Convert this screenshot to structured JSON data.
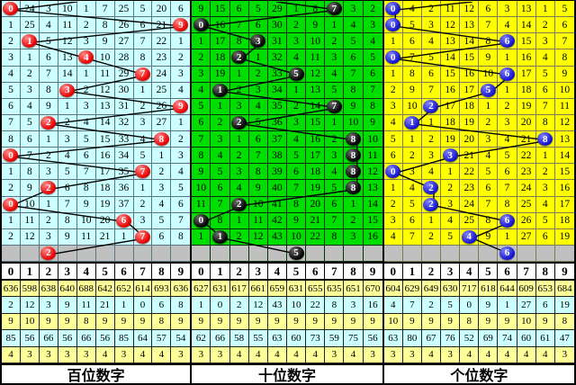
{
  "chart_data": {
    "type": "table",
    "column_headers": [
      "0",
      "1",
      "2",
      "3",
      "4",
      "5",
      "6",
      "7",
      "8",
      "9"
    ],
    "panels": [
      {
        "name": "hundreds",
        "label": "百位数字",
        "bg": "#ccffff",
        "grid_border": "#5a7682",
        "ball_color": "#e60000",
        "ball_light": "#ff8a8a",
        "entry_col": 3.9,
        "rows": [
          {
            "cells": [
              "0",
              "24",
              "3",
              "10",
              "1",
              "7",
              "25",
              "5",
              "20",
              "6"
            ],
            "ball_col": 0
          },
          {
            "cells": [
              "1",
              "25",
              "4",
              "11",
              "2",
              "8",
              "26",
              "6",
              "21",
              "9"
            ],
            "ball_col": 9
          },
          {
            "cells": [
              "2",
              "1",
              "5",
              "12",
              "3",
              "9",
              "27",
              "7",
              "22",
              "1"
            ],
            "ball_col": 1
          },
          {
            "cells": [
              "3",
              "1",
              "6",
              "13",
              "4",
              "10",
              "28",
              "8",
              "23",
              "2"
            ],
            "ball_col": 4
          },
          {
            "cells": [
              "4",
              "2",
              "7",
              "14",
              "1",
              "11",
              "29",
              "7",
              "24",
              "3"
            ],
            "ball_col": 7
          },
          {
            "cells": [
              "5",
              "3",
              "8",
              "3",
              "2",
              "12",
              "30",
              "1",
              "25",
              "4"
            ],
            "ball_col": 3
          },
          {
            "cells": [
              "6",
              "4",
              "9",
              "1",
              "3",
              "13",
              "31",
              "2",
              "26",
              "9"
            ],
            "ball_col": 9
          },
          {
            "cells": [
              "7",
              "5",
              "2",
              "2",
              "4",
              "14",
              "32",
              "3",
              "27",
              "1"
            ],
            "ball_col": 2
          },
          {
            "cells": [
              "8",
              "6",
              "1",
              "3",
              "5",
              "15",
              "33",
              "4",
              "8",
              "2"
            ],
            "ball_col": 8
          },
          {
            "cells": [
              "0",
              "7",
              "2",
              "4",
              "6",
              "16",
              "34",
              "5",
              "1",
              "3"
            ],
            "ball_col": 0
          },
          {
            "cells": [
              "1",
              "8",
              "3",
              "5",
              "7",
              "17",
              "35",
              "7",
              "2",
              "4"
            ],
            "ball_col": 7
          },
          {
            "cells": [
              "2",
              "9",
              "2",
              "6",
              "8",
              "18",
              "36",
              "1",
              "3",
              "5"
            ],
            "ball_col": 2
          },
          {
            "cells": [
              "0",
              "10",
              "1",
              "7",
              "9",
              "19",
              "37",
              "2",
              "4",
              "6"
            ],
            "ball_col": 0
          },
          {
            "cells": [
              "1",
              "11",
              "2",
              "8",
              "10",
              "20",
              "6",
              "3",
              "5",
              "7"
            ],
            "ball_col": 6
          },
          {
            "cells": [
              "2",
              "12",
              "3",
              "9",
              "11",
              "21",
              "1",
              "7",
              "6",
              "8"
            ],
            "ball_col": 7
          }
        ],
        "next_ball": {
          "col": 2,
          "value": "2"
        },
        "stats": [
          [
            "636",
            "598",
            "638",
            "640",
            "688",
            "642",
            "652",
            "614",
            "693",
            "636"
          ],
          [
            "2",
            "12",
            "3",
            "9",
            "11",
            "21",
            "1",
            "0",
            "6",
            "8"
          ],
          [
            "9",
            "10",
            "9",
            "9",
            "8",
            "9",
            "9",
            "9",
            "8",
            "9"
          ],
          [
            "85",
            "56",
            "66",
            "56",
            "66",
            "56",
            "85",
            "64",
            "57",
            "54"
          ],
          [
            "4",
            "3",
            "3",
            "3",
            "3",
            "4",
            "3",
            "4",
            "4",
            "3"
          ]
        ]
      },
      {
        "name": "tens",
        "label": "十位数字",
        "bg": "#00dd00",
        "grid_border": "#063006",
        "ball_color": "#000000",
        "ball_light": "#6e6e6e",
        "entry_col": 4.3,
        "rows": [
          {
            "cells": [
              "9",
              "15",
              "6",
              "5",
              "29",
              "1",
              "8",
              "7",
              "3",
              "2"
            ],
            "ball_col": 7
          },
          {
            "cells": [
              "0",
              "16",
              "7",
              "6",
              "30",
              "2",
              "9",
              "1",
              "4",
              "3"
            ],
            "ball_col": 0
          },
          {
            "cells": [
              "1",
              "17",
              "8",
              "3",
              "31",
              "3",
              "10",
              "2",
              "5",
              "4"
            ],
            "ball_col": 3
          },
          {
            "cells": [
              "2",
              "18",
              "2",
              "1",
              "32",
              "4",
              "11",
              "3",
              "6",
              "5"
            ],
            "ball_col": 2
          },
          {
            "cells": [
              "3",
              "19",
              "1",
              "2",
              "33",
              "5",
              "12",
              "4",
              "7",
              "6"
            ],
            "ball_col": 5
          },
          {
            "cells": [
              "4",
              "1",
              "2",
              "3",
              "34",
              "1",
              "13",
              "5",
              "8",
              "7"
            ],
            "ball_col": 1
          },
          {
            "cells": [
              "5",
              "1",
              "3",
              "4",
              "35",
              "2",
              "14",
              "7",
              "9",
              "8"
            ],
            "ball_col": 7
          },
          {
            "cells": [
              "6",
              "2",
              "2",
              "5",
              "36",
              "3",
              "15",
              "1",
              "10",
              "9"
            ],
            "ball_col": 2
          },
          {
            "cells": [
              "7",
              "3",
              "1",
              "6",
              "37",
              "4",
              "16",
              "2",
              "8",
              "10"
            ],
            "ball_col": 8
          },
          {
            "cells": [
              "8",
              "4",
              "2",
              "7",
              "38",
              "5",
              "17",
              "3",
              "8",
              "11"
            ],
            "ball_col": 8
          },
          {
            "cells": [
              "9",
              "5",
              "3",
              "8",
              "39",
              "6",
              "18",
              "4",
              "8",
              "12"
            ],
            "ball_col": 8
          },
          {
            "cells": [
              "10",
              "6",
              "4",
              "9",
              "40",
              "7",
              "19",
              "5",
              "8",
              "13"
            ],
            "ball_col": 8
          },
          {
            "cells": [
              "11",
              "7",
              "2",
              "10",
              "41",
              "8",
              "20",
              "6",
              "1",
              "14"
            ],
            "ball_col": 2
          },
          {
            "cells": [
              "0",
              "8",
              "1",
              "11",
              "42",
              "9",
              "21",
              "7",
              "2",
              "15"
            ],
            "ball_col": 0
          },
          {
            "cells": [
              "1",
              "1",
              "2",
              "12",
              "43",
              "10",
              "22",
              "8",
              "3",
              "16"
            ],
            "ball_col": 1
          }
        ],
        "next_ball": {
          "col": 5,
          "value": "5"
        },
        "stats": [
          [
            "627",
            "631",
            "617",
            "661",
            "659",
            "631",
            "655",
            "635",
            "651",
            "670"
          ],
          [
            "1",
            "0",
            "2",
            "12",
            "43",
            "10",
            "22",
            "8",
            "3",
            "16"
          ],
          [
            "9",
            "9",
            "9",
            "9",
            "9",
            "9",
            "9",
            "9",
            "9",
            "9"
          ],
          [
            "62",
            "66",
            "58",
            "55",
            "63",
            "60",
            "73",
            "59",
            "75",
            "56"
          ],
          [
            "3",
            "3",
            "4",
            "4",
            "4",
            "4",
            "4",
            "3",
            "4",
            "3"
          ]
        ]
      },
      {
        "name": "ones",
        "label": "个位数字",
        "bg": "#ffff00",
        "grid_border": "#7c7c52",
        "ball_color": "#1414cc",
        "ball_light": "#8080ff",
        "entry_col": 4.5,
        "rows": [
          {
            "cells": [
              "0",
              "4",
              "2",
              "11",
              "12",
              "6",
              "3",
              "13",
              "1",
              "5"
            ],
            "ball_col": 0
          },
          {
            "cells": [
              "0",
              "5",
              "3",
              "12",
              "13",
              "7",
              "4",
              "14",
              "2",
              "6"
            ],
            "ball_col": 0
          },
          {
            "cells": [
              "1",
              "6",
              "4",
              "13",
              "14",
              "8",
              "6",
              "15",
              "3",
              "7"
            ],
            "ball_col": 6
          },
          {
            "cells": [
              "0",
              "7",
              "5",
              "14",
              "15",
              "9",
              "1",
              "16",
              "4",
              "8"
            ],
            "ball_col": 0
          },
          {
            "cells": [
              "1",
              "8",
              "6",
              "15",
              "16",
              "10",
              "6",
              "17",
              "5",
              "9"
            ],
            "ball_col": 6
          },
          {
            "cells": [
              "2",
              "9",
              "7",
              "16",
              "17",
              "5",
              "1",
              "18",
              "6",
              "10"
            ],
            "ball_col": 5
          },
          {
            "cells": [
              "3",
              "10",
              "2",
              "17",
              "18",
              "1",
              "2",
              "19",
              "7",
              "11"
            ],
            "ball_col": 2
          },
          {
            "cells": [
              "4",
              "1",
              "1",
              "18",
              "19",
              "2",
              "3",
              "20",
              "8",
              "12"
            ],
            "ball_col": 1
          },
          {
            "cells": [
              "5",
              "1",
              "2",
              "19",
              "20",
              "3",
              "4",
              "21",
              "8",
              "13"
            ],
            "ball_col": 8
          },
          {
            "cells": [
              "6",
              "2",
              "3",
              "3",
              "21",
              "4",
              "5",
              "22",
              "1",
              "14"
            ],
            "ball_col": 3
          },
          {
            "cells": [
              "0",
              "3",
              "4",
              "1",
              "22",
              "5",
              "6",
              "23",
              "2",
              "15"
            ],
            "ball_col": 0
          },
          {
            "cells": [
              "1",
              "4",
              "2",
              "2",
              "23",
              "6",
              "7",
              "24",
              "3",
              "16"
            ],
            "ball_col": 2
          },
          {
            "cells": [
              "2",
              "5",
              "2",
              "3",
              "24",
              "7",
              "8",
              "25",
              "4",
              "17"
            ],
            "ball_col": 2
          },
          {
            "cells": [
              "3",
              "6",
              "1",
              "4",
              "25",
              "8",
              "6",
              "26",
              "5",
              "18"
            ],
            "ball_col": 6
          },
          {
            "cells": [
              "4",
              "7",
              "2",
              "5",
              "4",
              "9",
              "1",
              "27",
              "6",
              "19"
            ],
            "ball_col": 4
          }
        ],
        "next_ball": {
          "col": 6,
          "value": "6"
        },
        "stats": [
          [
            "604",
            "629",
            "649",
            "630",
            "717",
            "618",
            "644",
            "609",
            "653",
            "684"
          ],
          [
            "4",
            "7",
            "2",
            "5",
            "0",
            "9",
            "1",
            "27",
            "6",
            "19"
          ],
          [
            "10",
            "9",
            "9",
            "9",
            "8",
            "9",
            "9",
            "10",
            "9",
            "8"
          ],
          [
            "63",
            "80",
            "67",
            "76",
            "52",
            "69",
            "74",
            "60",
            "61",
            "47"
          ],
          [
            "3",
            "3",
            "4",
            "3",
            "4",
            "4",
            "4",
            "4",
            "4",
            "3"
          ]
        ]
      }
    ],
    "line_color": "#000000",
    "pending_row_bg": "#c0c0c0",
    "stats_row_colors": [
      "#ffff99",
      "#ccffff",
      "#ffff99",
      "#ccffff",
      "#ffff99"
    ]
  }
}
